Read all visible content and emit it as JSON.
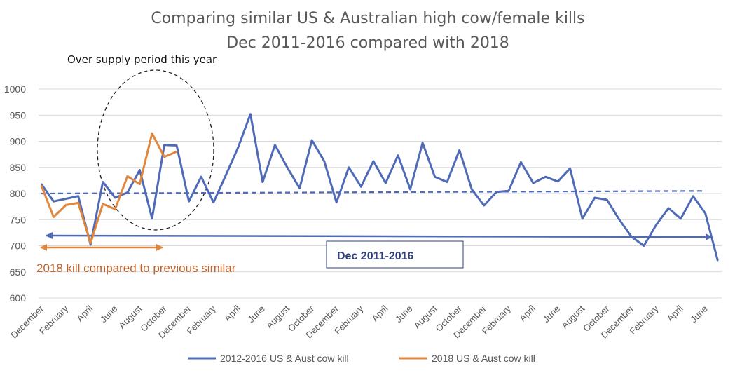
{
  "chart_data": {
    "type": "line",
    "title": "Comparing similar US & Australian high cow/female kills",
    "subtitle": "Dec 2011-2016 compared with 2018",
    "ylim": [
      600,
      1000
    ],
    "yticks": [
      "600",
      "650",
      "700",
      "750",
      "800",
      "850",
      "900",
      "950",
      "1000"
    ],
    "ytick_values": [
      600,
      650,
      700,
      750,
      800,
      850,
      900,
      950,
      1000
    ],
    "grid": true,
    "legend_position": "bottom",
    "x_tick_labels": [
      "December",
      "February",
      "April",
      "June",
      "August",
      "October",
      "December",
      "February",
      "April",
      "June",
      "August",
      "October",
      "December",
      "February",
      "April",
      "June",
      "August",
      "October",
      "December",
      "February",
      "April",
      "June",
      "August",
      "October",
      "December",
      "February",
      "April",
      "June"
    ],
    "x_tick_positions": [
      0,
      2,
      4,
      6,
      8,
      10,
      12,
      14,
      16,
      18,
      20,
      22,
      24,
      26,
      28,
      30,
      32,
      34,
      36,
      38,
      40,
      42,
      44,
      46,
      48,
      50,
      52,
      54
    ],
    "series": [
      {
        "name": "2012-2016 US & Aust cow kill",
        "color": "#4f6ab7",
        "values": [
          818,
          785,
          790,
          795,
          702,
          822,
          792,
          802,
          845,
          752,
          893,
          892,
          785,
          832,
          783,
          835,
          888,
          952,
          822,
          893,
          850,
          810,
          902,
          862,
          783,
          850,
          813,
          862,
          820,
          873,
          808,
          897,
          832,
          822,
          883,
          808,
          777,
          803,
          805,
          860,
          820,
          832,
          823,
          848,
          752,
          792,
          788,
          750,
          717,
          700,
          740,
          772,
          752,
          795,
          762,
          672
        ]
      },
      {
        "name": "2018 US & Aust cow kill",
        "color": "#e0873d",
        "values": [
          815,
          755,
          778,
          782,
          705,
          780,
          770,
          833,
          818,
          915,
          870,
          880
        ]
      }
    ],
    "trend_line": {
      "from": 0,
      "to": 54,
      "y": [
        800,
        805
      ],
      "color": "#4f6ab7",
      "style": "dashed"
    },
    "annotations": {
      "oversupply": "Over supply period this year",
      "kill_compare": "2018  kill compared to previous similar",
      "range_box": "Dec 2011-2016"
    }
  }
}
